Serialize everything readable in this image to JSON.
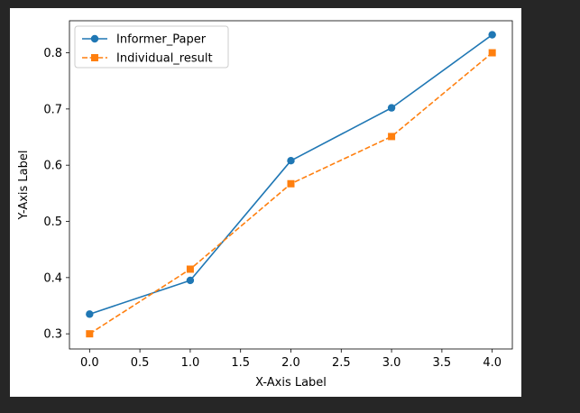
{
  "chart_data": {
    "type": "line",
    "xlabel": "X-Axis Label",
    "ylabel": "Y-Axis Label",
    "xlim": [
      -0.2,
      4.2
    ],
    "ylim": [
      0.273,
      0.857
    ],
    "xticks": [
      0.0,
      0.5,
      1.0,
      1.5,
      2.0,
      2.5,
      3.0,
      3.5,
      4.0
    ],
    "xtick_labels": [
      "0.0",
      "0.5",
      "1.0",
      "1.5",
      "2.0",
      "2.5",
      "3.0",
      "3.5",
      "4.0"
    ],
    "yticks": [
      0.3,
      0.4,
      0.5,
      0.6,
      0.7,
      0.8
    ],
    "ytick_labels": [
      "0.3",
      "0.4",
      "0.5",
      "0.6",
      "0.7",
      "0.8"
    ],
    "grid": false,
    "legend_position": "upper-left",
    "x": [
      0,
      1,
      2,
      3,
      4
    ],
    "series": [
      {
        "name": "Informer_Paper",
        "values": [
          0.335,
          0.395,
          0.608,
          0.702,
          0.832
        ],
        "color": "#1f77b4",
        "line_style": "solid",
        "marker": "circle"
      },
      {
        "name": "Individual_result",
        "values": [
          0.3,
          0.415,
          0.567,
          0.651,
          0.8
        ],
        "color": "#ff7f0e",
        "line_style": "dashed",
        "marker": "square"
      }
    ]
  }
}
